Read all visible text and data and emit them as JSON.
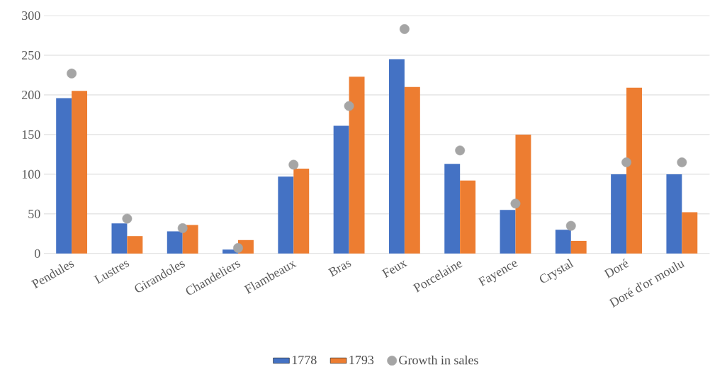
{
  "chart_data": {
    "type": "bar",
    "categories": [
      "Pendules",
      "Lustres",
      "Girandoles",
      "Chandeliers",
      "Flambeaux",
      "Bras",
      "Feux",
      "Porcelaine",
      "Fayence",
      "Crystal",
      "Doré",
      "Doré d'or moulu"
    ],
    "series": [
      {
        "name": "1778",
        "color": "#4472c4",
        "values": [
          196,
          38,
          28,
          5,
          97,
          161,
          245,
          113,
          55,
          30,
          100,
          100
        ]
      },
      {
        "name": "1793",
        "color": "#ed7d31",
        "values": [
          205,
          22,
          36,
          17,
          107,
          223,
          210,
          92,
          150,
          16,
          209,
          52
        ]
      },
      {
        "name": "Growth in sales",
        "type": "scatter",
        "color": "#a5a5a5",
        "marker": "circle",
        "x": [
          "Pendules",
          "Lustres",
          "Girandoles",
          "Chandeliers",
          "Flambeaux",
          "Bras",
          "Feux",
          "Porcelaine",
          "Fayence",
          "Crystal",
          "Doré",
          "Doré d'or moulu"
        ],
        "values": [
          227,
          44,
          32,
          7,
          112,
          186,
          283,
          130,
          63,
          35,
          115,
          115
        ]
      }
    ],
    "ylim": [
      0,
      300
    ],
    "yticks": [
      0,
      50,
      100,
      150,
      200,
      250,
      300
    ],
    "grid": "y",
    "legend": "bottom"
  }
}
